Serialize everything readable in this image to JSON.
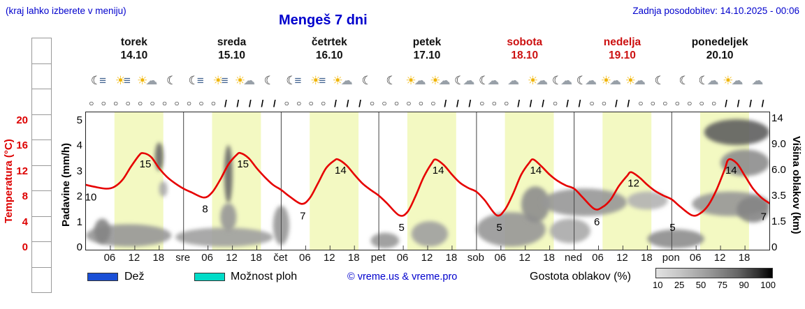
{
  "header": {
    "menu_hint": "(kraj lahko izberete v meniju)",
    "title": "Mengeš 7 dni",
    "last_update": "Zadnja posodobitev: 14.10.2025 - 00:06"
  },
  "axes": {
    "temperature": {
      "title": "Temperatura (°C)",
      "ticks": [
        "20",
        "16",
        "12",
        "8",
        "4",
        "0"
      ],
      "values": [
        20,
        16,
        12,
        8,
        4,
        0
      ],
      "color": "#dd0000"
    },
    "precipitation": {
      "title": "Padavine (mm/h)",
      "ticks": [
        "5",
        "4",
        "3",
        "2",
        "1",
        "0"
      ],
      "values": [
        5,
        4,
        3,
        2,
        1,
        0
      ]
    },
    "cloud_height": {
      "title": "Višina oblakov (km)",
      "ticks": [
        "14",
        "9.0",
        "6.0",
        "3.5",
        "1.5",
        "0"
      ],
      "values": [
        14,
        9,
        6,
        3.5,
        1.5,
        0
      ]
    }
  },
  "days": [
    {
      "name": "torek",
      "date": "14.10",
      "weekend": false
    },
    {
      "name": "sreda",
      "date": "15.10",
      "weekend": false
    },
    {
      "name": "četrtek",
      "date": "16.10",
      "weekend": false
    },
    {
      "name": "petek",
      "date": "17.10",
      "weekend": false
    },
    {
      "name": "sobota",
      "date": "18.10",
      "weekend": true
    },
    {
      "name": "nedelja",
      "date": "19.10",
      "weekend": true
    },
    {
      "name": "ponedeljek",
      "date": "20.10",
      "weekend": false
    }
  ],
  "xaxis": {
    "hour_labels": [
      "06",
      "12",
      "18"
    ],
    "day_abbrevs": [
      "sre",
      "čet",
      "pet",
      "sob",
      "ned",
      "pon"
    ]
  },
  "icon_slots": [
    "night-fog",
    "day-fog-sun",
    "partly-cloudy-day",
    "clear-night",
    "night-fog",
    "day-fog-sun",
    "partly-cloudy-day",
    "clear-night",
    "night-fog",
    "day-fog-sun",
    "partly-cloudy-day",
    "clear-night",
    "clear-night",
    "partly-cloudy-day",
    "partly-cloudy-day",
    "partly-cloudy-night",
    "partly-cloudy-night",
    "cloudy",
    "partly-cloudy-day",
    "partly-cloudy-night",
    "partly-cloudy-night",
    "partly-cloudy-day",
    "partly-cloudy-day",
    "clear-night",
    "clear-night",
    "partly-cloudy-night",
    "partly-cloudy-day",
    "cloudy"
  ],
  "wind_slots": [
    "calm",
    "calm",
    "calm",
    "calm",
    "calm",
    "calm",
    "calm",
    "calm",
    "calm",
    "calm",
    "calm",
    "barb",
    "barb",
    "barb",
    "barb",
    "barb",
    "calm",
    "calm",
    "calm",
    "calm",
    "barb",
    "barb",
    "barb",
    "calm",
    "calm",
    "calm",
    "calm",
    "calm",
    "calm",
    "barb",
    "barb",
    "barb",
    "calm",
    "calm",
    "calm",
    "barb",
    "barb",
    "barb",
    "calm",
    "barb",
    "barb",
    "calm",
    "calm",
    "barb",
    "barb",
    "calm",
    "calm",
    "calm",
    "calm",
    "calm",
    "calm",
    "calm",
    "barb",
    "barb",
    "barb",
    "barb"
  ],
  "legend": {
    "rain_label": "Dež",
    "rain_color": "#1a4fd6",
    "showers_label": "Možnost ploh",
    "showers_color": "#00dcc8",
    "copyright": "© vreme.us & vreme.pro",
    "cloud_density_label": "Gostota oblakov (%)",
    "density_ticks": [
      "10",
      "25",
      "50",
      "75",
      "90",
      "100"
    ]
  },
  "chart_data": {
    "type": "line",
    "title": "Mengeš 7 dni",
    "x_unit": "hours from 14.10.2025 00:00 (7 days, 24 h per day)",
    "day_bands_hours": [
      7,
      19
    ],
    "temperature_series": {
      "name": "Temperatura",
      "unit": "°C",
      "color": "#e60000",
      "ylim": [
        0,
        20
      ],
      "points": [
        [
          0,
          10
        ],
        [
          2,
          9.7
        ],
        [
          5,
          9.4
        ],
        [
          7,
          9.7
        ],
        [
          9,
          10.8
        ],
        [
          11,
          12.8
        ],
        [
          13,
          14.6
        ],
        [
          14,
          15
        ],
        [
          16,
          14.4
        ],
        [
          18,
          12.6
        ],
        [
          20,
          11.2
        ],
        [
          22,
          10.2
        ],
        [
          24,
          9.4
        ],
        [
          26,
          8.8
        ],
        [
          29,
          8
        ],
        [
          31,
          8.8
        ],
        [
          33,
          10.8
        ],
        [
          35,
          13.2
        ],
        [
          37,
          14.7
        ],
        [
          38,
          15
        ],
        [
          40,
          14.2
        ],
        [
          42,
          12.6
        ],
        [
          44,
          11.2
        ],
        [
          46,
          10
        ],
        [
          48,
          9.2
        ],
        [
          50,
          8.2
        ],
        [
          53,
          7
        ],
        [
          55,
          7.9
        ],
        [
          57,
          10.2
        ],
        [
          59,
          12.6
        ],
        [
          61,
          13.8
        ],
        [
          62,
          14
        ],
        [
          64,
          13.1
        ],
        [
          66,
          11.6
        ],
        [
          68,
          10.2
        ],
        [
          70,
          9.2
        ],
        [
          72,
          8.3
        ],
        [
          74,
          7.1
        ],
        [
          77,
          5.2
        ],
        [
          79,
          5.7
        ],
        [
          81,
          8.2
        ],
        [
          83,
          11.2
        ],
        [
          85,
          13.4
        ],
        [
          86,
          14
        ],
        [
          88,
          13.1
        ],
        [
          90,
          11.6
        ],
        [
          92,
          10.3
        ],
        [
          94,
          9.5
        ],
        [
          96,
          8.9
        ],
        [
          98,
          7.6
        ],
        [
          101,
          5.2
        ],
        [
          103,
          6.1
        ],
        [
          105,
          8.6
        ],
        [
          107,
          11.6
        ],
        [
          109,
          13.5
        ],
        [
          110,
          14
        ],
        [
          112,
          12.9
        ],
        [
          114,
          11.6
        ],
        [
          116,
          10.6
        ],
        [
          118,
          9.9
        ],
        [
          120,
          9.4
        ],
        [
          122,
          8.1
        ],
        [
          125,
          6.2
        ],
        [
          127,
          6.5
        ],
        [
          129,
          7.7
        ],
        [
          131,
          9.8
        ],
        [
          133,
          11.4
        ],
        [
          134,
          12
        ],
        [
          136,
          11.2
        ],
        [
          138,
          10
        ],
        [
          140,
          9
        ],
        [
          142,
          8.3
        ],
        [
          144,
          7.7
        ],
        [
          146,
          6.6
        ],
        [
          149,
          5.2
        ],
        [
          151,
          5.5
        ],
        [
          153,
          6.8
        ],
        [
          155,
          9.2
        ],
        [
          157,
          12.4
        ],
        [
          158,
          14
        ],
        [
          160,
          13.4
        ],
        [
          162,
          11.4
        ],
        [
          164,
          9.4
        ],
        [
          166,
          8
        ],
        [
          168,
          7.1
        ]
      ],
      "labels": [
        {
          "h": 1.2,
          "t": 8.1,
          "text": "10"
        },
        {
          "h": 14.6,
          "t": 13.3,
          "text": "15"
        },
        {
          "h": 29.3,
          "t": 6.2,
          "text": "8"
        },
        {
          "h": 38.6,
          "t": 13.3,
          "text": "15"
        },
        {
          "h": 53.3,
          "t": 5.1,
          "text": "7"
        },
        {
          "h": 62.6,
          "t": 12.3,
          "text": "14"
        },
        {
          "h": 77.6,
          "t": 3.3,
          "text": "5"
        },
        {
          "h": 86.6,
          "t": 12.3,
          "text": "14"
        },
        {
          "h": 101.6,
          "t": 3.3,
          "text": "5"
        },
        {
          "h": 110.6,
          "t": 12.3,
          "text": "14"
        },
        {
          "h": 125.6,
          "t": 4.2,
          "text": "6"
        },
        {
          "h": 134.6,
          "t": 10.3,
          "text": "12"
        },
        {
          "h": 144.2,
          "t": 3.3,
          "text": "5"
        },
        {
          "h": 158.6,
          "t": 12.3,
          "text": "14"
        },
        {
          "h": 166.6,
          "t": 5.0,
          "text": "7"
        }
      ]
    },
    "cloud_height_axis_km": [
      0,
      1.5,
      3.5,
      6,
      9,
      14
    ],
    "cloud_regions": [
      {
        "h1": 0,
        "h2": 21,
        "km1": 0.1,
        "km2": 1.4,
        "density": 55
      },
      {
        "h1": 2,
        "h2": 6,
        "km1": 0.3,
        "km2": 1.8,
        "density": 65
      },
      {
        "h1": 17,
        "h2": 19,
        "km1": 6,
        "km2": 9.5,
        "density": 80
      },
      {
        "h1": 18,
        "h2": 20,
        "km1": 3.5,
        "km2": 5,
        "density": 45
      },
      {
        "h1": 22,
        "h2": 46,
        "km1": 0.1,
        "km2": 1.2,
        "density": 50
      },
      {
        "h1": 34,
        "h2": 36,
        "km1": 3,
        "km2": 9,
        "density": 80
      },
      {
        "h1": 33,
        "h2": 37,
        "km1": 1,
        "km2": 3,
        "density": 55
      },
      {
        "h1": 46,
        "h2": 50,
        "km1": 0.2,
        "km2": 2.8,
        "density": 55
      },
      {
        "h1": 70,
        "h2": 77,
        "km1": 0,
        "km2": 0.9,
        "density": 55
      },
      {
        "h1": 80,
        "h2": 89,
        "km1": 0.1,
        "km2": 1.6,
        "density": 50
      },
      {
        "h1": 96,
        "h2": 113,
        "km1": 0.1,
        "km2": 2.3,
        "density": 55
      },
      {
        "h1": 107,
        "h2": 114,
        "km1": 1.5,
        "km2": 4.5,
        "density": 60
      },
      {
        "h1": 112,
        "h2": 133,
        "km1": 2,
        "km2": 4.3,
        "density": 55
      },
      {
        "h1": 114,
        "h2": 124,
        "km1": 0.3,
        "km2": 1.8,
        "density": 45
      },
      {
        "h1": 133,
        "h2": 143,
        "km1": 2.5,
        "km2": 4,
        "density": 40
      },
      {
        "h1": 138,
        "h2": 152,
        "km1": 0,
        "km2": 1.1,
        "density": 60
      },
      {
        "h1": 149,
        "h2": 168,
        "km1": 2,
        "km2": 4,
        "density": 55
      },
      {
        "h1": 152,
        "h2": 168,
        "km1": 9,
        "km2": 14,
        "density": 85
      },
      {
        "h1": 156,
        "h2": 168,
        "km1": 5.5,
        "km2": 8.5,
        "density": 60
      },
      {
        "h1": 160,
        "h2": 168,
        "km1": 1.5,
        "km2": 3.5,
        "density": 65
      }
    ]
  }
}
